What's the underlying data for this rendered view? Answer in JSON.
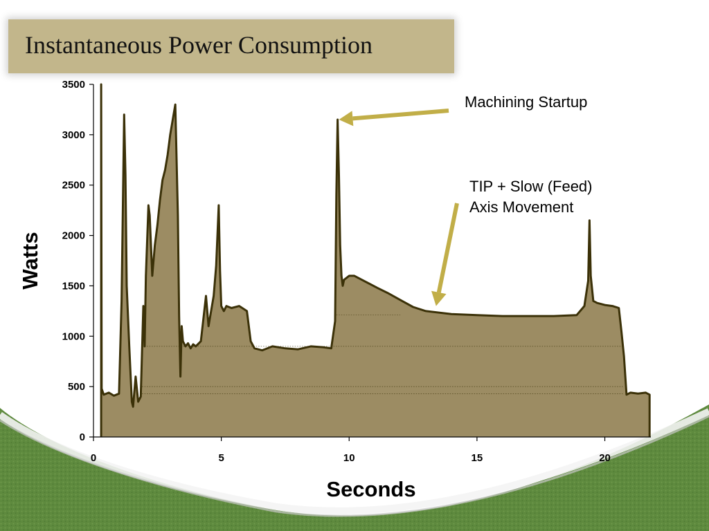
{
  "slide": {
    "title": "Instantaneous Power Consumption",
    "colors": {
      "title_bar": "#c2b68b",
      "area_fill": "#9c8c63",
      "line": "#3b3108",
      "arrow": "#c1ae48",
      "green_band": "#5e8a3e"
    }
  },
  "chart_data": {
    "type": "area",
    "title": "",
    "xlabel": "Seconds",
    "ylabel": "Watts",
    "xlim": [
      0,
      21.8
    ],
    "ylim": [
      0,
      3500
    ],
    "x_ticks": [
      "0",
      "5",
      "10",
      "15",
      "20"
    ],
    "x_tick_values": [
      0,
      5,
      10,
      15,
      20
    ],
    "y_ticks": [
      "0",
      "500",
      "1000",
      "1500",
      "2000",
      "2500",
      "3000",
      "3500"
    ],
    "y_tick_values": [
      0,
      500,
      1000,
      1500,
      2000,
      2500,
      3000,
      3500
    ],
    "grid": false,
    "series": [
      {
        "x": [
          0.3,
          0.3,
          0.32,
          0.4,
          0.6,
          0.8,
          1.0,
          1.05,
          1.1,
          1.2,
          1.25,
          1.3,
          1.4,
          1.5,
          1.55,
          1.65,
          1.75,
          1.85,
          1.95,
          2.0,
          2.05,
          2.15,
          2.2,
          2.3,
          2.4,
          2.5,
          2.6,
          2.7,
          2.8,
          2.9,
          3.0,
          3.1,
          3.2,
          3.3,
          3.35,
          3.4,
          3.45,
          3.5,
          3.6,
          3.7,
          3.8,
          3.9,
          4.0,
          4.2,
          4.4,
          4.5,
          4.6,
          4.7,
          4.8,
          4.9,
          4.95,
          5.0,
          5.1,
          5.2,
          5.4,
          5.7,
          6.0,
          6.15,
          6.3,
          6.6,
          7.0,
          7.5,
          8.0,
          8.5,
          9.0,
          9.3,
          9.45,
          9.5,
          9.55,
          9.6,
          9.65,
          9.7,
          9.75,
          9.8,
          9.9,
          10.0,
          10.2,
          10.5,
          10.8,
          11.1,
          11.5,
          12.0,
          12.5,
          13.0,
          14.0,
          15.0,
          16.0,
          17.0,
          18.0,
          18.9,
          19.2,
          19.35,
          19.4,
          19.45,
          19.55,
          19.7,
          20.0,
          20.3,
          20.55,
          20.65,
          20.75,
          20.85,
          21.0,
          21.3,
          21.6,
          21.75,
          21.75
        ],
        "y": [
          0,
          3500,
          480,
          420,
          440,
          410,
          430,
          900,
          1350,
          3200,
          2600,
          1500,
          900,
          350,
          300,
          600,
          350,
          400,
          1300,
          900,
          1600,
          2300,
          2200,
          1600,
          1900,
          2100,
          2350,
          2550,
          2650,
          2800,
          3000,
          3150,
          3300,
          2200,
          1200,
          600,
          1100,
          950,
          900,
          930,
          880,
          920,
          900,
          950,
          1400,
          1100,
          1250,
          1400,
          1700,
          2300,
          1650,
          1300,
          1250,
          1300,
          1280,
          1300,
          1250,
          950,
          880,
          860,
          900,
          880,
          870,
          900,
          890,
          880,
          1150,
          2400,
          3150,
          2600,
          1900,
          1600,
          1500,
          1560,
          1580,
          1600,
          1600,
          1560,
          1520,
          1480,
          1430,
          1360,
          1290,
          1250,
          1220,
          1210,
          1200,
          1200,
          1200,
          1210,
          1300,
          1550,
          2150,
          1600,
          1350,
          1330,
          1310,
          1300,
          1280,
          1050,
          800,
          420,
          440,
          430,
          440,
          420,
          0
        ]
      }
    ],
    "annotations": [
      {
        "id": "machining",
        "lines": [
          "Machining Startup"
        ],
        "target_x": 9.6,
        "target_y": 3150
      },
      {
        "id": "tip",
        "lines": [
          "TIP + Slow (Feed)",
          "Axis Movement"
        ],
        "target_x": 13.4,
        "target_y": 1300
      }
    ]
  }
}
